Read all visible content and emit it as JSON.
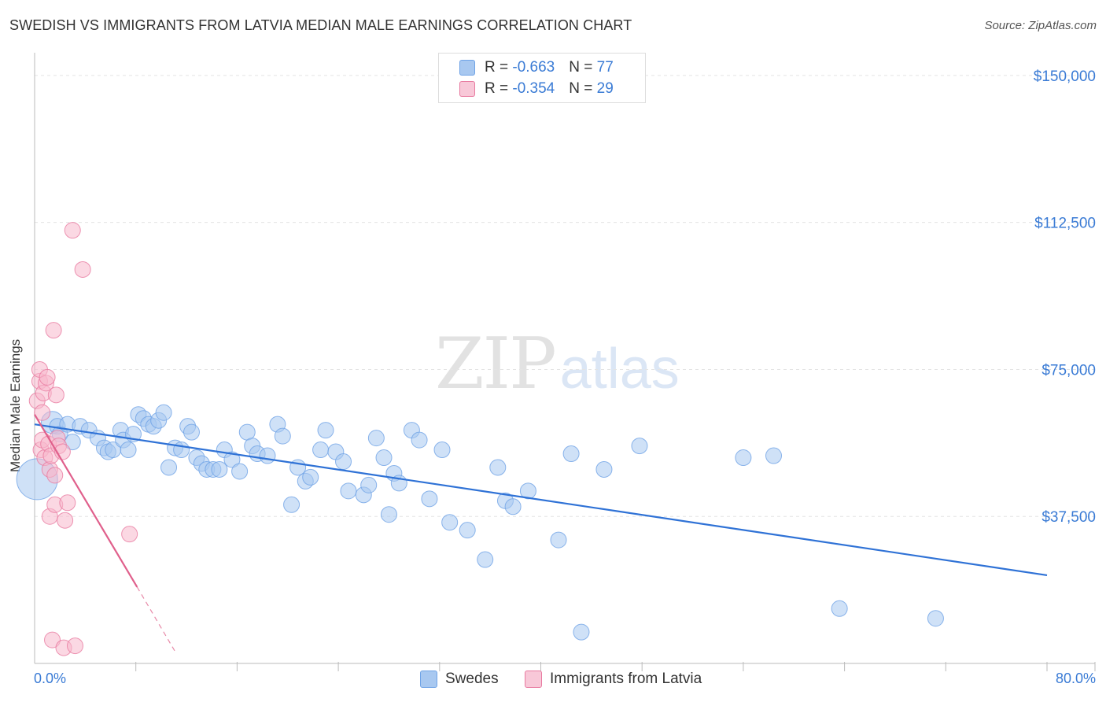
{
  "title": "SWEDISH VS IMMIGRANTS FROM LATVIA MEDIAN MALE EARNINGS CORRELATION CHART",
  "source": "Source: ZipAtlas.com",
  "watermark": {
    "zip": "ZIP",
    "atlas": "atlas"
  },
  "legend": {
    "rows": [
      {
        "r_label": "R = ",
        "r_value": "-0.663",
        "n_label": "N = ",
        "n_value": "77",
        "color": "#a8c8f0"
      },
      {
        "r_label": "R = ",
        "r_value": "-0.354",
        "n_label": "N = ",
        "n_value": "29",
        "color": "#f8b8cc"
      }
    ]
  },
  "bottom_legend": [
    {
      "label": "Swedes",
      "color": "#a8c8f0"
    },
    {
      "label": "Immigrants from Latvia",
      "color": "#f8b8cc"
    }
  ],
  "chart_data": {
    "type": "scatter",
    "title": "SWEDISH VS IMMIGRANTS FROM LATVIA MEDIAN MALE EARNINGS CORRELATION CHART",
    "xlabel": "",
    "ylabel": "Median Male Earnings",
    "xlim": [
      0,
      80
    ],
    "ylim": [
      0,
      155000
    ],
    "x_tick_labels": [
      "0.0%",
      "80.0%"
    ],
    "y_ticks": [
      {
        "value": 37500,
        "label": "$37,500"
      },
      {
        "value": 75000,
        "label": "$75,000"
      },
      {
        "value": 112500,
        "label": "$112,500"
      },
      {
        "value": 150000,
        "label": "$150,000"
      }
    ],
    "grid": true,
    "legend_position": "top-center",
    "series": [
      {
        "name": "Swedes",
        "color": "#6fa3e6",
        "fill": "#a8c8f0",
        "points": [
          [
            0.2,
            47000,
            26
          ],
          [
            1.4,
            61500,
            14
          ],
          [
            1.8,
            60500,
            10
          ],
          [
            2.0,
            58500,
            10
          ],
          [
            2.6,
            61000,
            10
          ],
          [
            3.0,
            56500,
            10
          ],
          [
            3.6,
            60500,
            10
          ],
          [
            4.3,
            59500,
            10
          ],
          [
            5.0,
            57500,
            10
          ],
          [
            5.5,
            55000,
            10
          ],
          [
            5.8,
            54000,
            10
          ],
          [
            6.2,
            54500,
            10
          ],
          [
            6.8,
            59500,
            10
          ],
          [
            7.0,
            57000,
            10
          ],
          [
            7.4,
            54500,
            10
          ],
          [
            7.8,
            58500,
            10
          ],
          [
            8.2,
            63500,
            10
          ],
          [
            8.6,
            62500,
            10
          ],
          [
            9.0,
            61000,
            10
          ],
          [
            9.4,
            60500,
            10
          ],
          [
            9.8,
            62000,
            10
          ],
          [
            10.2,
            64000,
            10
          ],
          [
            10.6,
            50000,
            10
          ],
          [
            11.1,
            55000,
            10
          ],
          [
            11.6,
            54500,
            10
          ],
          [
            12.1,
            60500,
            10
          ],
          [
            12.4,
            59000,
            10
          ],
          [
            12.8,
            52500,
            10
          ],
          [
            13.2,
            51000,
            10
          ],
          [
            13.6,
            49500,
            10
          ],
          [
            14.1,
            49500,
            10
          ],
          [
            14.6,
            49500,
            10
          ],
          [
            15.0,
            54500,
            10
          ],
          [
            15.6,
            52000,
            10
          ],
          [
            16.2,
            49000,
            10
          ],
          [
            16.8,
            59000,
            10
          ],
          [
            17.2,
            55500,
            10
          ],
          [
            17.6,
            53500,
            10
          ],
          [
            18.4,
            53000,
            10
          ],
          [
            19.2,
            61000,
            10
          ],
          [
            19.6,
            58000,
            10
          ],
          [
            20.3,
            40500,
            10
          ],
          [
            20.8,
            50000,
            10
          ],
          [
            21.4,
            46500,
            10
          ],
          [
            21.8,
            47500,
            10
          ],
          [
            22.6,
            54500,
            10
          ],
          [
            23.0,
            59500,
            10
          ],
          [
            23.8,
            54000,
            10
          ],
          [
            24.4,
            51500,
            10
          ],
          [
            24.8,
            44000,
            10
          ],
          [
            26.0,
            43000,
            10
          ],
          [
            26.4,
            45500,
            10
          ],
          [
            27.0,
            57500,
            10
          ],
          [
            27.6,
            52500,
            10
          ],
          [
            28.0,
            38000,
            10
          ],
          [
            28.4,
            48500,
            10
          ],
          [
            28.8,
            46000,
            10
          ],
          [
            29.8,
            59500,
            10
          ],
          [
            30.4,
            57000,
            10
          ],
          [
            31.2,
            42000,
            10
          ],
          [
            32.2,
            54500,
            10
          ],
          [
            32.8,
            36000,
            10
          ],
          [
            34.2,
            34000,
            10
          ],
          [
            35.6,
            26500,
            10
          ],
          [
            36.6,
            50000,
            10
          ],
          [
            37.2,
            41500,
            10
          ],
          [
            37.8,
            40000,
            10
          ],
          [
            39.0,
            44000,
            10
          ],
          [
            41.4,
            31500,
            10
          ],
          [
            42.4,
            53500,
            10
          ],
          [
            43.2,
            8000,
            10
          ],
          [
            45.0,
            49500,
            10
          ],
          [
            47.8,
            55500,
            10
          ],
          [
            56.0,
            52500,
            10
          ],
          [
            58.4,
            53000,
            10
          ],
          [
            63.6,
            14000,
            10
          ],
          [
            71.2,
            11500,
            10
          ]
        ],
        "trend": {
          "x": [
            0,
            80
          ],
          "y": [
            61000,
            22500
          ]
        }
      },
      {
        "name": "Immigrants from Latvia",
        "color": "#e87aa0",
        "fill": "#f8b8cc",
        "points": [
          [
            0.2,
            67000,
            10
          ],
          [
            0.4,
            72000,
            10
          ],
          [
            0.4,
            75000,
            10
          ],
          [
            0.5,
            54500,
            10
          ],
          [
            0.6,
            57000,
            10
          ],
          [
            0.7,
            69000,
            10
          ],
          [
            0.8,
            52500,
            10
          ],
          [
            0.9,
            71500,
            10
          ],
          [
            1.0,
            73000,
            10
          ],
          [
            1.1,
            56000,
            10
          ],
          [
            1.2,
            49500,
            10
          ],
          [
            1.2,
            37500,
            10
          ],
          [
            1.3,
            53000,
            10
          ],
          [
            1.4,
            6000,
            10
          ],
          [
            1.5,
            85000,
            10
          ],
          [
            1.6,
            48000,
            10
          ],
          [
            1.6,
            40500,
            10
          ],
          [
            1.7,
            68500,
            10
          ],
          [
            1.8,
            57500,
            10
          ],
          [
            1.9,
            55500,
            10
          ],
          [
            2.2,
            54000,
            10
          ],
          [
            2.3,
            4000,
            10
          ],
          [
            2.4,
            36500,
            10
          ],
          [
            2.6,
            41000,
            10
          ],
          [
            3.0,
            110500,
            10
          ],
          [
            3.2,
            4500,
            10
          ],
          [
            3.8,
            100500,
            10
          ],
          [
            7.5,
            33000,
            10
          ],
          [
            0.6,
            64000,
            10
          ]
        ],
        "trend": {
          "x": [
            0,
            8.1
          ],
          "y": [
            63500,
            19500
          ]
        },
        "trend_extension": {
          "x": [
            8.1,
            11.2
          ],
          "y": [
            19500,
            2500
          ]
        }
      }
    ]
  }
}
